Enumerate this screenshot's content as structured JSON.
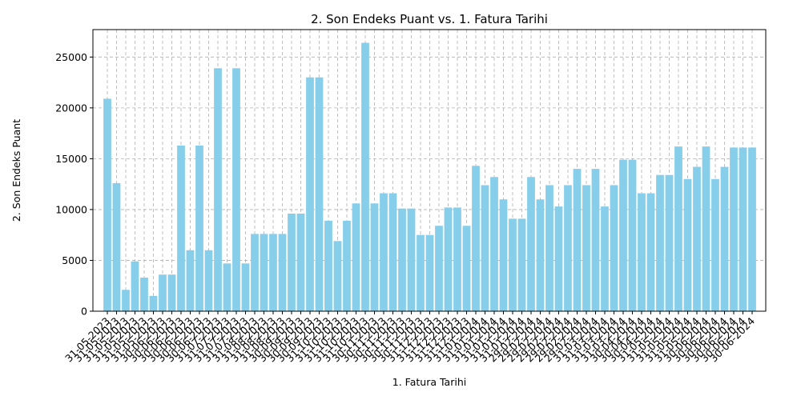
{
  "chart_data": {
    "type": "bar",
    "title": "2. Son Endeks Puant vs. 1. Fatura Tarihi",
    "xlabel": "1. Fatura Tarihi",
    "ylabel": "2. Son Endeks Puant",
    "ylim": [
      0,
      27700
    ],
    "yticks": [
      0,
      5000,
      10000,
      15000,
      20000,
      25000
    ],
    "grid": true,
    "bar_color": "#87ceeb",
    "categories": [
      "31-05-2023",
      "31-05-2023",
      "31-05-2023",
      "31-05-2023",
      "31-05-2023",
      "31-05-2023",
      "30-06-2023",
      "30-06-2023",
      "30-06-2023",
      "30-06-2023",
      "30-06-2023",
      "30-06-2023",
      "31-07-2023",
      "31-07-2023",
      "31-07-2023",
      "31-07-2023",
      "31-08-2023",
      "31-08-2023",
      "31-08-2023",
      "31-08-2023",
      "30-09-2023",
      "30-09-2023",
      "30-09-2023",
      "30-09-2023",
      "31-10-2023",
      "31-10-2023",
      "31-10-2023",
      "31-10-2023",
      "31-10-2023",
      "30-11-2023",
      "30-11-2023",
      "30-11-2023",
      "30-11-2023",
      "30-11-2023",
      "30-11-2023",
      "31-12-2023",
      "31-12-2023",
      "31-12-2023",
      "31-12-2023",
      "31-12-2023",
      "31-01-2024",
      "31-01-2024",
      "31-01-2024",
      "31-01-2024",
      "31-01-2024",
      "31-01-2024",
      "29-02-2024",
      "29-02-2024",
      "29-02-2024",
      "29-02-2024",
      "29-02-2024",
      "29-02-2024",
      "29-02-2024",
      "31-03-2024",
      "31-03-2024",
      "31-03-2024",
      "31-03-2024",
      "30-04-2024",
      "30-04-2024",
      "30-04-2024",
      "31-05-2024",
      "31-05-2024",
      "31-05-2024",
      "31-05-2024",
      "31-05-2024",
      "30-06-2024",
      "30-06-2024",
      "30-06-2024",
      "30-06-2024",
      "30-06-2024",
      "30-06-2024"
    ],
    "values": [
      20900,
      12600,
      2100,
      4900,
      3300,
      1500,
      3600,
      3600,
      16300,
      6000,
      16300,
      6000,
      23900,
      4700,
      23900,
      4700,
      7600,
      7600,
      7600,
      7600,
      9600,
      9600,
      23000,
      23000,
      8900,
      6900,
      8900,
      10600,
      26400,
      10600,
      11600,
      11600,
      10100,
      10100,
      7500,
      7500,
      8400,
      10200,
      10200,
      8400,
      14300,
      12400,
      13200,
      11000,
      9100,
      9100,
      13200,
      11000,
      12400,
      10300,
      12400,
      14000,
      12400,
      14000,
      10300,
      12400,
      14900,
      14900,
      11600,
      11600,
      13400,
      13400,
      16200,
      13000,
      14200,
      16200,
      13000,
      14200,
      16100,
      16100,
      16100
    ]
  }
}
